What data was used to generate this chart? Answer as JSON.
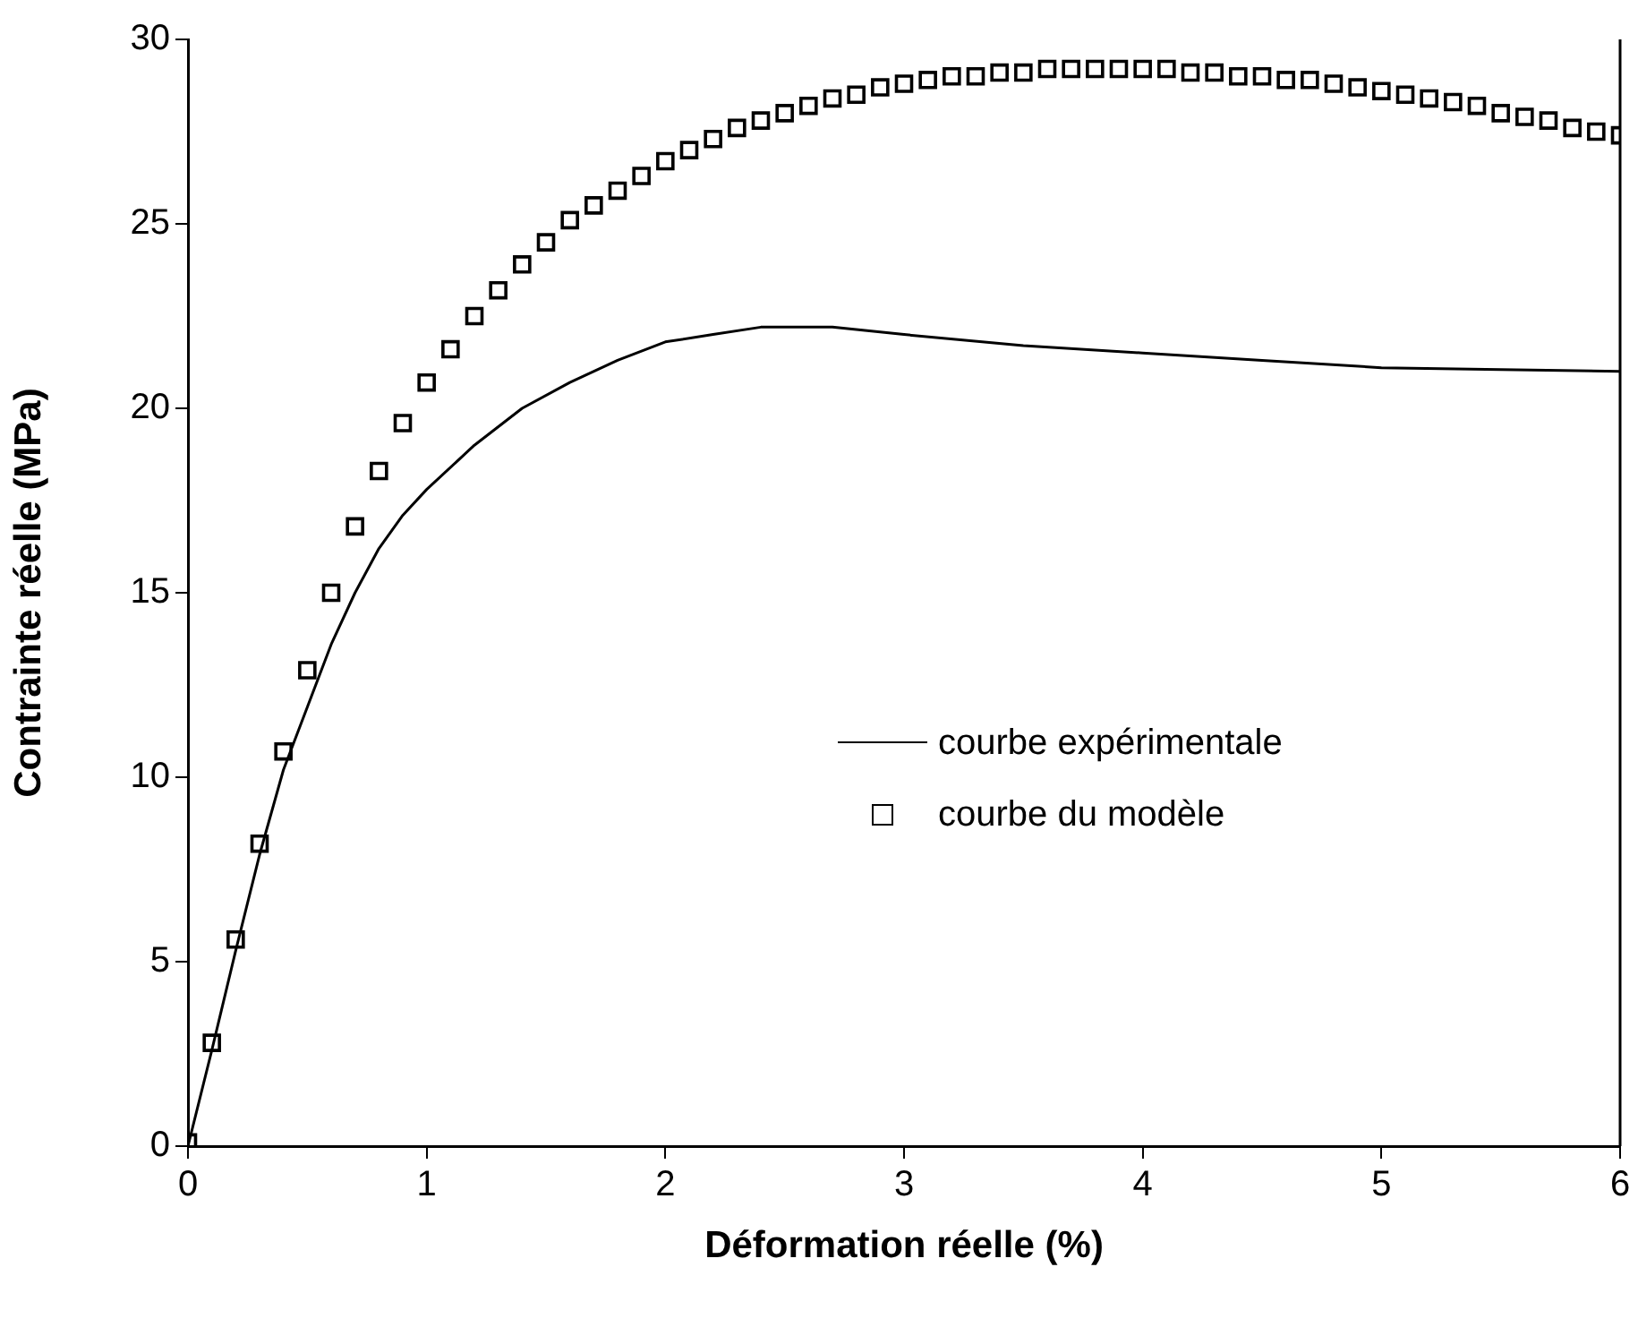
{
  "chart_data": {
    "type": "line",
    "xlabel": "Déformation réelle (%)",
    "ylabel": "Contrainte réelle (MPa)",
    "xlim": [
      0,
      6
    ],
    "xticks": [
      0,
      1,
      2,
      3,
      4,
      5,
      6
    ],
    "ylim": [
      0,
      30
    ],
    "yticks": [
      0,
      5,
      10,
      15,
      20,
      25,
      30
    ],
    "grid": false,
    "legend": "right",
    "series": [
      {
        "name": "courbe expérimentale",
        "color": "#000000",
        "marker": "none",
        "line_style": "solid",
        "x": [
          0,
          0.1,
          0.2,
          0.3,
          0.4,
          0.5,
          0.6,
          0.7,
          0.8,
          0.9,
          1.0,
          1.2,
          1.4,
          1.6,
          1.8,
          2.0,
          2.2,
          2.4,
          2.7,
          3.0,
          3.5,
          4.0,
          4.5,
          5.0,
          5.5,
          6.0
        ],
        "values": [
          0,
          2.6,
          5.3,
          7.9,
          10.2,
          11.9,
          13.6,
          15.0,
          16.2,
          17.1,
          17.8,
          19.0,
          20.0,
          20.7,
          21.3,
          21.8,
          22.0,
          22.2,
          22.2,
          22.0,
          21.7,
          21.5,
          21.3,
          21.1,
          21.05,
          21.0
        ]
      },
      {
        "name": "courbe du modèle",
        "type": "scatter",
        "color": "#000000",
        "marker": "square",
        "x": [
          0,
          0.1,
          0.2,
          0.3,
          0.4,
          0.5,
          0.6,
          0.7,
          0.8,
          0.9,
          1.0,
          1.1,
          1.2,
          1.3,
          1.4,
          1.5,
          1.6,
          1.7,
          1.8,
          1.9,
          2.0,
          2.1,
          2.2,
          2.3,
          2.4,
          2.5,
          2.6,
          2.7,
          2.8,
          2.9,
          3.0,
          3.1,
          3.2,
          3.3,
          3.4,
          3.5,
          3.6,
          3.7,
          3.8,
          3.9,
          4.0,
          4.1,
          4.2,
          4.3,
          4.4,
          4.5,
          4.6,
          4.7,
          4.8,
          4.9,
          5.0,
          5.1,
          5.2,
          5.3,
          5.4,
          5.5,
          5.6,
          5.7,
          5.8,
          5.9,
          6.0
        ],
        "values": [
          0.1,
          2.8,
          5.6,
          8.2,
          10.7,
          12.9,
          15.0,
          16.8,
          18.3,
          19.6,
          20.7,
          21.6,
          22.5,
          23.2,
          23.9,
          24.5,
          25.1,
          25.5,
          25.9,
          26.3,
          26.7,
          27.0,
          27.3,
          27.6,
          27.8,
          28.0,
          28.2,
          28.4,
          28.5,
          28.7,
          28.8,
          28.9,
          29.0,
          29.0,
          29.1,
          29.1,
          29.2,
          29.2,
          29.2,
          29.2,
          29.2,
          29.2,
          29.1,
          29.1,
          29.0,
          29.0,
          28.9,
          28.9,
          28.8,
          28.7,
          28.6,
          28.5,
          28.4,
          28.3,
          28.2,
          28.0,
          27.9,
          27.8,
          27.6,
          27.5,
          27.4
        ]
      }
    ]
  }
}
